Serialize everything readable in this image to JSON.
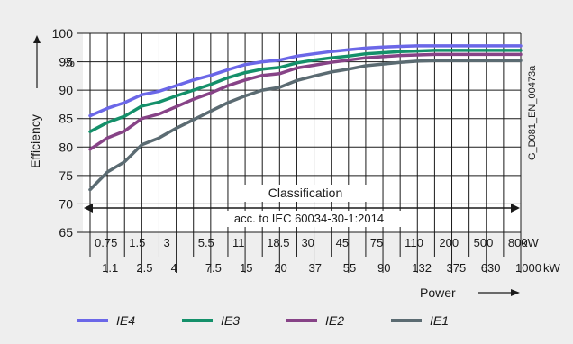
{
  "chart_data": {
    "type": "line",
    "ylabel": "Efficiency",
    "y_unit": "%",
    "xlabel": "Power",
    "ylim": [
      65,
      100
    ],
    "y_ticks": [
      "65",
      "70",
      "75",
      "80",
      "85",
      "90",
      "95",
      "100"
    ],
    "x_unit": "kW",
    "x_ticks_top": [
      "0.75",
      "1.5",
      "3",
      "5.5",
      "11",
      "18.5",
      "30",
      "45",
      "75",
      "110",
      "200",
      "500",
      "800"
    ],
    "x_ticks_bottom": [
      "1.1",
      "2.5",
      "4",
      "7.5",
      "15",
      "20",
      "37",
      "55",
      "90",
      "132",
      "375",
      "630",
      "1000"
    ],
    "x_categories": [
      "0.75",
      "1.1",
      "1.5",
      "2.5",
      "3",
      "4",
      "5.5",
      "7.5",
      "11",
      "15",
      "18.5",
      "20",
      "30",
      "37",
      "45",
      "55",
      "75",
      "90",
      "110",
      "132",
      "200",
      "375",
      "500",
      "630",
      "800",
      "1000"
    ],
    "classification_label": "Classification",
    "standard_label": "acc. to IEC 60034-30-1:2014",
    "figure_id": "G_D081_EN_00473a",
    "grid": true,
    "legend_position": "bottom",
    "series": [
      {
        "name": "IE4",
        "color": "#6b67e8",
        "values": [
          85.5,
          86.8,
          87.8,
          89.2,
          89.8,
          90.8,
          91.8,
          92.6,
          93.6,
          94.5,
          95.0,
          95.3,
          96.0,
          96.4,
          96.8,
          97.1,
          97.4,
          97.6,
          97.7,
          97.8,
          97.8,
          97.8,
          97.8,
          97.8,
          97.8,
          97.8
        ]
      },
      {
        "name": "IE3",
        "color": "#14906a",
        "values": [
          82.7,
          84.3,
          85.4,
          87.2,
          87.9,
          89.0,
          90.0,
          91.0,
          92.2,
          93.1,
          93.7,
          94.0,
          94.8,
          95.3,
          95.7,
          96.0,
          96.4,
          96.6,
          96.8,
          96.9,
          97.0,
          97.0,
          97.0,
          97.0,
          97.0,
          97.0
        ]
      },
      {
        "name": "IE2",
        "color": "#874387",
        "values": [
          79.6,
          81.6,
          82.8,
          85.0,
          85.8,
          87.1,
          88.4,
          89.5,
          90.8,
          91.8,
          92.6,
          92.9,
          93.9,
          94.4,
          94.9,
          95.3,
          95.7,
          95.9,
          96.1,
          96.2,
          96.3,
          96.3,
          96.3,
          96.3,
          96.3,
          96.3
        ]
      },
      {
        "name": "IE1",
        "color": "#5b6b72",
        "values": [
          72.5,
          75.6,
          77.4,
          80.4,
          81.6,
          83.3,
          84.8,
          86.3,
          87.8,
          89.0,
          90.0,
          90.5,
          91.7,
          92.5,
          93.2,
          93.7,
          94.3,
          94.6,
          94.9,
          95.1,
          95.2,
          95.2,
          95.2,
          95.2,
          95.2,
          95.2
        ]
      }
    ]
  }
}
